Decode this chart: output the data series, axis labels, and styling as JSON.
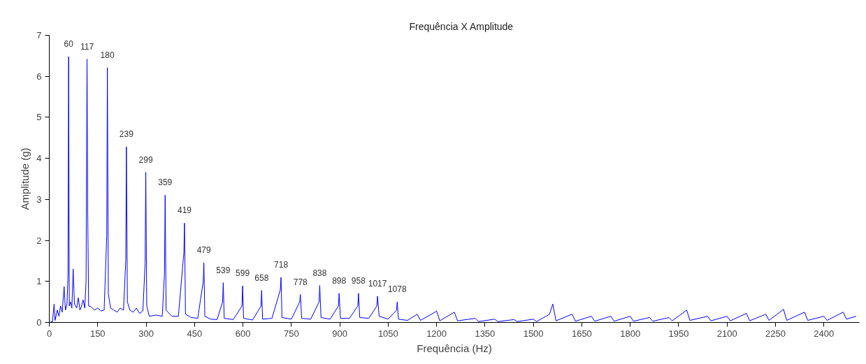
{
  "chart_data": {
    "type": "line",
    "title": "Frequência  X  Amplitude",
    "xlabel": "Frequência (Hz)",
    "ylabel": "Amplitude (g)",
    "xlim": [
      0,
      2510
    ],
    "ylim": [
      0,
      7
    ],
    "xticks": [
      0,
      150,
      300,
      450,
      600,
      750,
      900,
      1050,
      1200,
      1350,
      1500,
      1650,
      1800,
      1950,
      2100,
      2250,
      2400
    ],
    "yticks": [
      0,
      1,
      2,
      3,
      4,
      5,
      6,
      7
    ],
    "grid": false,
    "line_style": "solid",
    "marker": "none",
    "x": [
      0,
      10,
      15,
      18,
      25,
      30,
      35,
      40,
      46,
      50,
      55,
      58,
      60,
      62,
      66,
      70,
      74,
      78,
      85,
      90,
      95,
      100,
      105,
      110,
      114,
      117,
      119,
      122,
      130,
      140,
      150,
      160,
      170,
      178,
      180,
      183,
      190,
      200,
      210,
      220,
      230,
      237,
      239,
      242,
      250,
      260,
      270,
      280,
      290,
      297,
      299,
      302,
      310,
      330,
      350,
      357,
      359,
      362,
      380,
      400,
      417,
      419,
      422,
      440,
      460,
      477,
      479,
      482,
      500,
      520,
      537,
      539,
      542,
      570,
      597,
      599,
      602,
      630,
      656,
      658,
      661,
      690,
      716,
      718,
      721,
      750,
      776,
      778,
      782,
      810,
      836,
      838,
      842,
      870,
      896,
      898,
      902,
      930,
      956,
      958,
      962,
      990,
      1015,
      1017,
      1022,
      1050,
      1076,
      1078,
      1082,
      1110,
      1140,
      1150,
      1195,
      1200,
      1210,
      1255,
      1265,
      1320,
      1330,
      1380,
      1390,
      1440,
      1450,
      1500,
      1510,
      1550,
      1560,
      1570,
      1620,
      1630,
      1680,
      1690,
      1740,
      1750,
      1800,
      1810,
      1860,
      1870,
      1920,
      1930,
      1975,
      1985,
      2040,
      2050,
      2100,
      2110,
      2160,
      2170,
      2220,
      2230,
      2275,
      2285,
      2340,
      2350,
      2400,
      2410,
      2460,
      2470,
      2500
    ],
    "series": [
      {
        "color": "#0000ff",
        "values": [
          0,
          0.02,
          0.45,
          0.05,
          0.3,
          0.15,
          0.4,
          0.25,
          0.87,
          0.3,
          0.45,
          1.15,
          6.48,
          0.4,
          0.5,
          0.35,
          1.3,
          0.45,
          0.35,
          0.6,
          0.3,
          0.4,
          0.55,
          0.35,
          1.0,
          6.42,
          2.8,
          0.4,
          0.38,
          0.3,
          0.35,
          0.28,
          0.3,
          2.1,
          6.21,
          0.7,
          0.35,
          0.3,
          0.25,
          0.35,
          0.3,
          1.5,
          4.28,
          0.5,
          0.3,
          0.25,
          0.35,
          0.22,
          0.28,
          1.45,
          3.66,
          0.4,
          0.15,
          0.18,
          0.15,
          1.2,
          3.1,
          0.3,
          0.15,
          0.15,
          1.7,
          2.42,
          0.2,
          0.12,
          0.1,
          1.0,
          1.45,
          0.15,
          0.08,
          0.07,
          0.5,
          0.97,
          0.1,
          0.07,
          0.4,
          0.89,
          0.1,
          0.06,
          0.4,
          0.78,
          0.08,
          0.1,
          0.8,
          1.1,
          0.12,
          0.08,
          0.5,
          0.68,
          0.1,
          0.08,
          0.5,
          0.9,
          0.12,
          0.08,
          0.4,
          0.71,
          0.1,
          0.1,
          0.4,
          0.71,
          0.12,
          0.1,
          0.4,
          0.64,
          0.15,
          0.08,
          0.3,
          0.5,
          0.08,
          0.05,
          0.2,
          0.05,
          0.25,
          0.28,
          0.04,
          0.25,
          0.04,
          0.1,
          0.02,
          0.08,
          0.02,
          0.07,
          0.02,
          0.08,
          0.02,
          0.2,
          0.45,
          0.04,
          0.2,
          0.03,
          0.15,
          0.03,
          0.15,
          0.03,
          0.15,
          0.03,
          0.12,
          0.03,
          0.12,
          0.04,
          0.3,
          0.05,
          0.15,
          0.04,
          0.15,
          0.04,
          0.22,
          0.04,
          0.2,
          0.05,
          0.32,
          0.05,
          0.25,
          0.05,
          0.15,
          0.05,
          0.25,
          0.08,
          0.15
        ]
      }
    ],
    "annotations": [
      {
        "text": "60",
        "x": 60,
        "y": 6.48
      },
      {
        "text": "117",
        "x": 117,
        "y": 6.42
      },
      {
        "text": "180",
        "x": 180,
        "y": 6.21
      },
      {
        "text": "239",
        "x": 239,
        "y": 4.28
      },
      {
        "text": "299",
        "x": 299,
        "y": 3.66
      },
      {
        "text": "359",
        "x": 359,
        "y": 3.1
      },
      {
        "text": "419",
        "x": 419,
        "y": 2.42
      },
      {
        "text": "479",
        "x": 479,
        "y": 1.45
      },
      {
        "text": "539",
        "x": 539,
        "y": 0.97
      },
      {
        "text": "599",
        "x": 599,
        "y": 0.89
      },
      {
        "text": "658",
        "x": 658,
        "y": 0.78
      },
      {
        "text": "718",
        "x": 718,
        "y": 1.1
      },
      {
        "text": "778",
        "x": 778,
        "y": 0.68
      },
      {
        "text": "838",
        "x": 838,
        "y": 0.9
      },
      {
        "text": "898",
        "x": 898,
        "y": 0.71
      },
      {
        "text": "958",
        "x": 958,
        "y": 0.71
      },
      {
        "text": "1017",
        "x": 1017,
        "y": 0.64
      },
      {
        "text": "1078",
        "x": 1078,
        "y": 0.5
      }
    ]
  }
}
